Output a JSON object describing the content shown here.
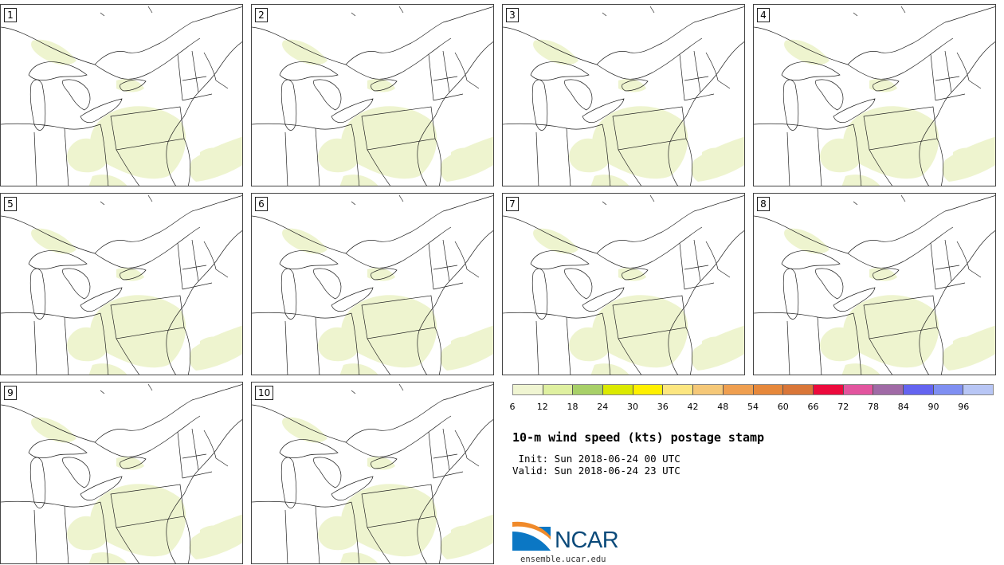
{
  "panels": [
    {
      "label": "1"
    },
    {
      "label": "2"
    },
    {
      "label": "3"
    },
    {
      "label": "4"
    },
    {
      "label": "5"
    },
    {
      "label": "6"
    },
    {
      "label": "7"
    },
    {
      "label": "8"
    },
    {
      "label": "9"
    },
    {
      "label": "10"
    }
  ],
  "colorbar": {
    "colors": [
      "#f0f5d2",
      "#dff0a0",
      "#a8d068",
      "#dbe900",
      "#fff000",
      "#fce680",
      "#f5c878",
      "#ef9f50",
      "#e6883b",
      "#d97638",
      "#ec0a3c",
      "#e2559e",
      "#a06aa6",
      "#6464f0",
      "#7f8ff2",
      "#b8c6f5"
    ],
    "ticks": [
      "6",
      "12",
      "18",
      "24",
      "30",
      "36",
      "42",
      "48",
      "54",
      "60",
      "66",
      "72",
      "78",
      "84",
      "90",
      "96"
    ]
  },
  "title": "10-m wind speed (kts) postage stamp",
  "init": " Init: Sun 2018-06-24 00 UTC",
  "valid": "Valid: Sun 2018-06-24 23 UTC",
  "logo": {
    "text": "NCAR",
    "url": "ensemble.ucar.edu",
    "brand_color": "#0b4a7a",
    "accent_color": "#f08a2a"
  }
}
